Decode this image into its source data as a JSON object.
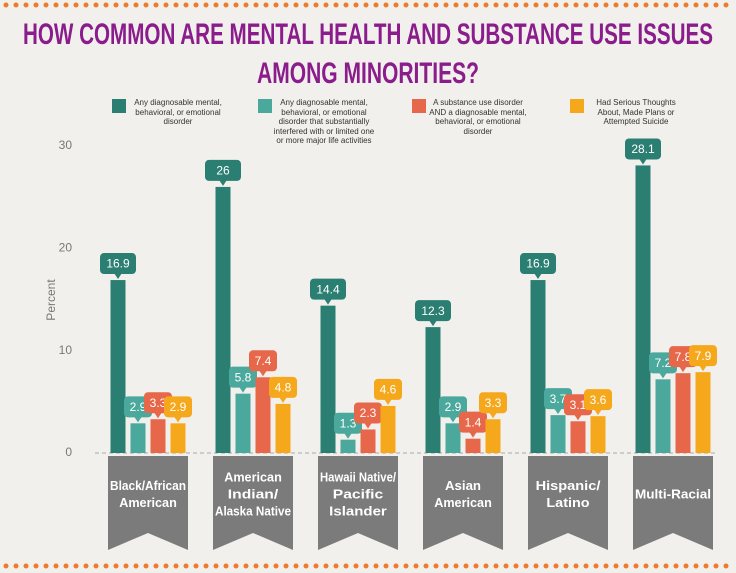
{
  "chart_data": {
    "type": "bar",
    "title": [
      "HOW COMMON ARE MENTAL HEALTH AND SUBSTANCE USE ISSUES",
      "AMONG MINORITIES?"
    ],
    "ylabel": "Percent",
    "categories": [
      [
        "Black/African",
        "American"
      ],
      [
        "American",
        "Indian/",
        "Alaska Native"
      ],
      [
        "Hawaii Native/",
        "Pacific",
        "Islander"
      ],
      [
        "Asian",
        "American"
      ],
      [
        "Hispanic/",
        "Latino"
      ],
      [
        "Multi-Racial"
      ]
    ],
    "series": [
      {
        "name": "Any diagnosable mental, behavioral, or emotional disorder",
        "color": "#2b7e72",
        "values": [
          16.9,
          26,
          14.4,
          12.3,
          16.9,
          28.1
        ]
      },
      {
        "name": "Any diagnosable mental, behavioral, or emotional disorder that substantially interfered with or limited one or more major life activities",
        "color": "#4ba89c",
        "values": [
          2.9,
          5.8,
          1.3,
          2.9,
          3.7,
          7.2
        ]
      },
      {
        "name": "A substance use disorder AND a diagnosable mental, behavioral, or emotional disorder",
        "color": "#e7674b",
        "values": [
          3.3,
          7.4,
          2.3,
          1.4,
          3.1,
          7.8
        ]
      },
      {
        "name": "Had Serious Thoughts About, Made Plans or Attempted Suicide",
        "color": "#f6a81c",
        "values": [
          2.9,
          4.8,
          4.6,
          3.3,
          3.6,
          7.9
        ]
      }
    ],
    "ylim": [
      0,
      30
    ],
    "yticks": [
      0,
      10,
      20,
      30
    ],
    "grid": false
  }
}
